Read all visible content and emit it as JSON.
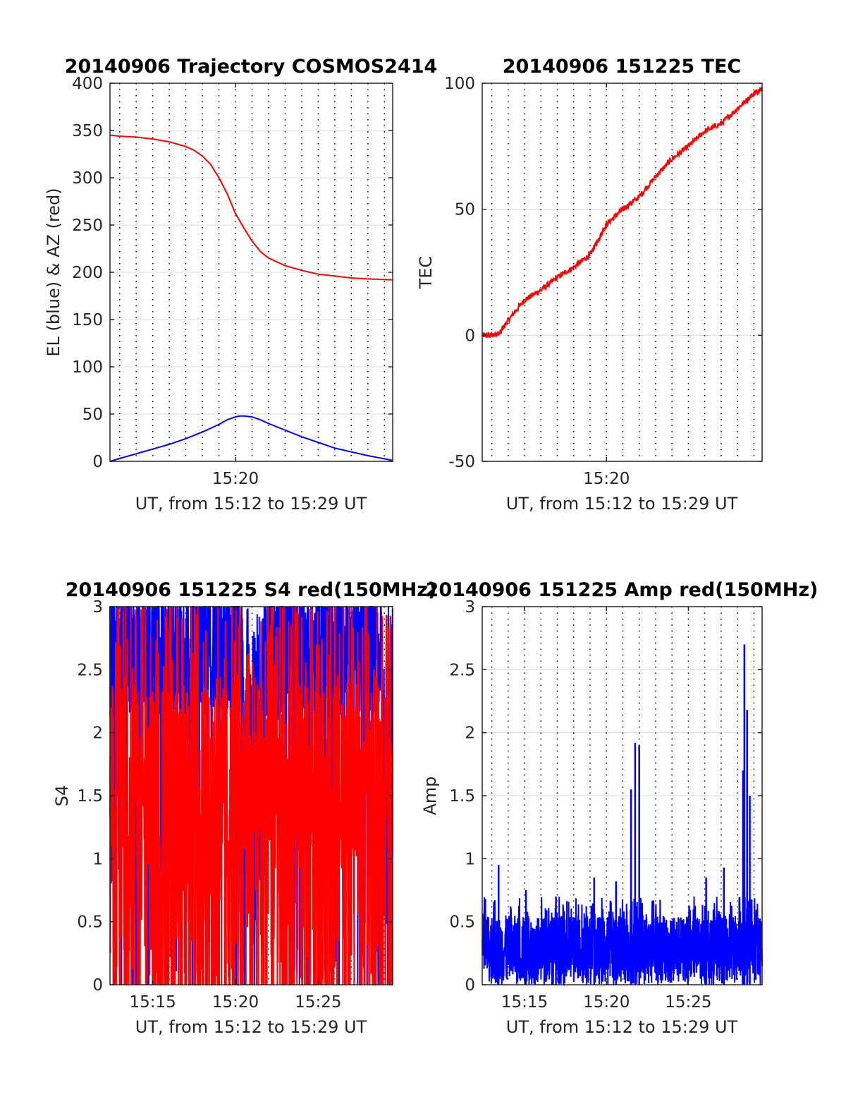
{
  "colors": {
    "red": "#ff0000",
    "blue": "#0000ff",
    "axis": "#262626",
    "grid": "#d9d9d9",
    "vgrid": "#000000"
  },
  "chart_data": [
    {
      "type": "line",
      "title": "20140906 Trajectory COSMOS2414",
      "xlabel": "UT, from 15:12 to 15:29 UT",
      "ylabel": "EL (blue) & AZ (red)",
      "xlim": [
        "15:12:25",
        "15:29:30"
      ],
      "ylim": [
        0,
        400
      ],
      "yticks": [
        0,
        50,
        100,
        150,
        200,
        250,
        300,
        350,
        400
      ],
      "xticks": [
        {
          "t": "15:20:00",
          "label": "15:20"
        }
      ],
      "grid": "horizontal solid, vertical dotted every 1 min",
      "series": [
        {
          "color": "red",
          "x": [
            "15:12:25",
            "15:13:00",
            "15:14:00",
            "15:15:00",
            "15:16:00",
            "15:17:00",
            "15:17:30",
            "15:18:00",
            "15:18:30",
            "15:19:00",
            "15:19:30",
            "15:20:00",
            "15:20:30",
            "15:21:00",
            "15:21:30",
            "15:22:00",
            "15:23:00",
            "15:24:00",
            "15:25:00",
            "15:26:00",
            "15:27:00",
            "15:28:00",
            "15:29:30"
          ],
          "y": [
            345,
            344,
            343,
            341,
            338,
            333,
            329,
            323,
            314,
            300,
            283,
            262,
            247,
            233,
            222,
            215,
            207,
            202,
            198,
            196,
            194,
            193,
            192
          ]
        },
        {
          "color": "blue",
          "x": [
            "15:12:25",
            "15:13:00",
            "15:14:00",
            "15:15:00",
            "15:16:00",
            "15:17:00",
            "15:18:00",
            "15:19:00",
            "15:19:30",
            "15:20:00",
            "15:20:15",
            "15:20:30",
            "15:21:00",
            "15:21:30",
            "15:22:00",
            "15:23:00",
            "15:24:00",
            "15:25:00",
            "15:26:00",
            "15:27:00",
            "15:28:00",
            "15:29:30"
          ],
          "y": [
            0,
            3,
            8,
            13,
            18,
            24,
            31,
            39,
            44,
            47,
            48,
            48,
            47,
            44,
            40,
            33,
            26,
            20,
            14,
            10,
            6,
            1
          ]
        }
      ]
    },
    {
      "type": "line",
      "title": "20140906 151225 TEC",
      "xlabel": "UT, from 15:12 to 15:29 UT",
      "ylabel": "TEC",
      "xlim": [
        "15:12:25",
        "15:29:30"
      ],
      "ylim": [
        -50,
        100
      ],
      "yticks": [
        -50,
        0,
        50,
        100
      ],
      "xticks": [
        {
          "t": "15:20:00",
          "label": "15:20"
        }
      ],
      "grid": "horizontal solid, vertical dotted every 1 min",
      "series": [
        {
          "color": "red",
          "x": [
            "15:12:25",
            "15:13:00",
            "15:13:30",
            "15:14:00",
            "15:15:00",
            "15:16:00",
            "15:17:00",
            "15:18:00",
            "15:19:00",
            "15:19:30",
            "15:20:00",
            "15:21:00",
            "15:22:00",
            "15:23:00",
            "15:24:00",
            "15:25:00",
            "15:26:00",
            "15:27:00",
            "15:28:00",
            "15:29:00",
            "15:29:30"
          ],
          "y": [
            0,
            0,
            1,
            6,
            14,
            18,
            23,
            27,
            32,
            38,
            44,
            50,
            55,
            63,
            70,
            75,
            81,
            84,
            90,
            96,
            98
          ]
        }
      ]
    },
    {
      "type": "line",
      "title": "20140906 151225 S4 red(150MHz)",
      "xlabel": "UT, from 15:12 to 15:29 UT",
      "ylabel": "S4",
      "xlim": [
        "15:12:25",
        "15:29:30"
      ],
      "ylim": [
        0,
        3
      ],
      "yticks": [
        0,
        0.5,
        1,
        1.5,
        2,
        2.5,
        3
      ],
      "xticks": [
        {
          "t": "15:15:00",
          "label": "15:15"
        },
        {
          "t": "15:20:00",
          "label": "15:20"
        },
        {
          "t": "15:25:00",
          "label": "15:25"
        }
      ],
      "grid": "horizontal solid, vertical dotted every 1 min",
      "series": [
        {
          "color": "blue",
          "style": "dense noisy trace mostly between 2 and 3, dips near 15:20:30–15:21:30 and 15:29",
          "x_start": "15:12:25",
          "x_end": "15:29:30"
        },
        {
          "color": "red",
          "style": "dense spikes spanning 0 to 3",
          "x_start": "15:12:25",
          "x_end": "15:29:30"
        }
      ]
    },
    {
      "type": "line",
      "title": "20140906 151225 Amp red(150MHz)",
      "xlabel": "UT, from 15:12 to 15:29 UT",
      "ylabel": "Amp",
      "xlim": [
        "15:12:25",
        "15:29:30"
      ],
      "ylim": [
        0,
        3
      ],
      "yticks": [
        0,
        0.5,
        1,
        1.5,
        2,
        2.5,
        3
      ],
      "xticks": [
        {
          "t": "15:15:00",
          "label": "15:15"
        },
        {
          "t": "15:20:00",
          "label": "15:20"
        },
        {
          "t": "15:25:00",
          "label": "15:25"
        }
      ],
      "grid": "horizontal solid, vertical dotted every 1 min",
      "series": [
        {
          "color": "blue",
          "style": "dense noise band 0 to ~0.6",
          "x_start": "15:12:25",
          "x_end": "15:29:30",
          "peaks": [
            {
              "x": "15:13:25",
              "y": 0.95
            },
            {
              "x": "15:15:05",
              "y": 0.75
            },
            {
              "x": "15:16:55",
              "y": 0.7
            },
            {
              "x": "15:19:15",
              "y": 0.85
            },
            {
              "x": "15:20:35",
              "y": 0.82
            },
            {
              "x": "15:21:30",
              "y": 1.55
            },
            {
              "x": "15:21:45",
              "y": 1.92
            },
            {
              "x": "15:22:00",
              "y": 1.9
            },
            {
              "x": "15:26:05",
              "y": 0.85
            },
            {
              "x": "15:27:10",
              "y": 0.93
            },
            {
              "x": "15:28:20",
              "y": 1.7
            },
            {
              "x": "15:28:25",
              "y": 2.7
            },
            {
              "x": "15:28:35",
              "y": 2.18
            },
            {
              "x": "15:28:45",
              "y": 1.5
            }
          ]
        }
      ]
    }
  ]
}
